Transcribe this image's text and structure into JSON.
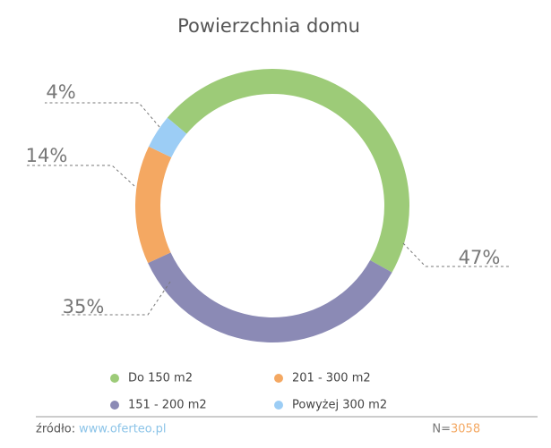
{
  "chart_data": {
    "type": "pie",
    "title": "Powierzchnia domu",
    "categories": [
      "Do 150 m2",
      "151 - 200 m2",
      "201 - 300 m2",
      "Powyżej 300 m2"
    ],
    "values": [
      47,
      35,
      14,
      4
    ],
    "value_labels": [
      "47%",
      "35%",
      "14%",
      "4%"
    ],
    "colors": [
      "#9dcb78",
      "#8b8ab5",
      "#f4a862",
      "#9ccdf5"
    ],
    "donut": true
  },
  "footer": {
    "source_label": "źródło:",
    "source_url": "www.oferteo.pl",
    "n_label": "N=",
    "n_value": 3058
  }
}
